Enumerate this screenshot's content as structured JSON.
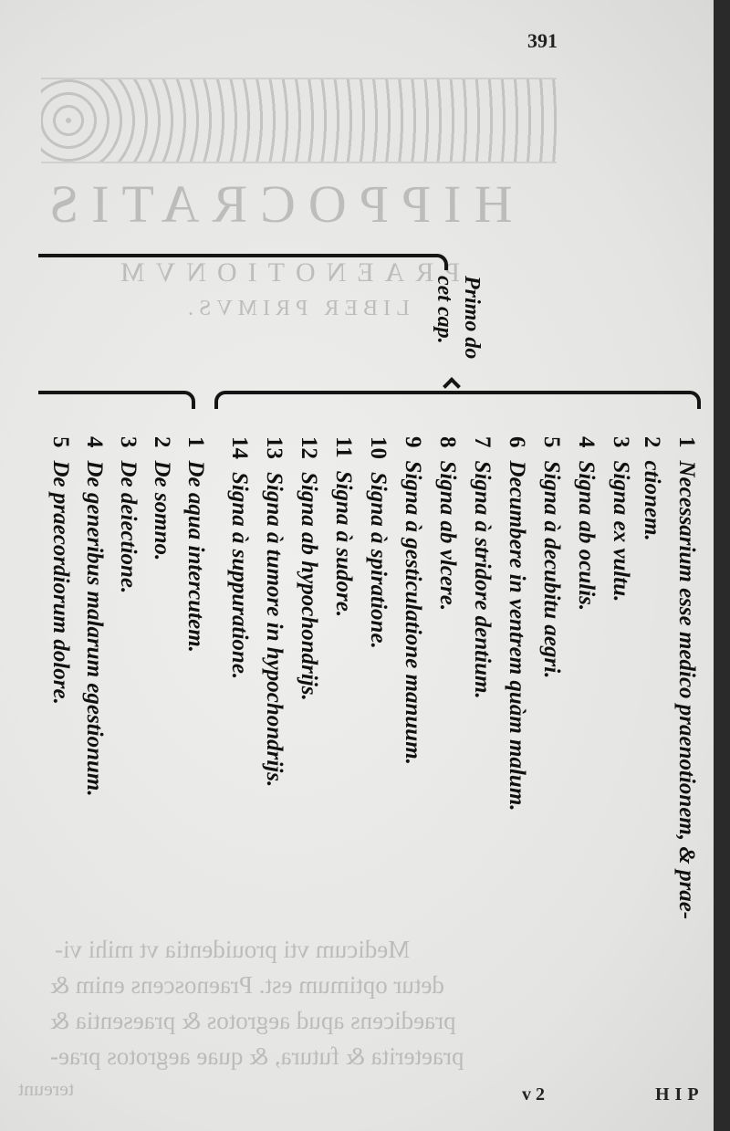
{
  "page_number": "391",
  "show_through": {
    "title": "HIPPOCRATIS",
    "subtitle": "PRAENOTIONVM",
    "book": "LIBER PRIMVS.",
    "paragraph": [
      "Medicum vti prouidentia vt mihi vi-",
      "detur optimum est. Praenoscens enim &",
      "praedicens apud aegrotos & praesentia &",
      "praeterita & futura, & quae aegrotos prae-",
      "tereunt"
    ]
  },
  "margin_note": [
    "Primo do",
    "cet cap."
  ],
  "chapters": [
    {
      "num": "1",
      "text": "Necessarium esse medico praenotionem, & prae-"
    },
    {
      "num": "2",
      "text": "ctionem."
    },
    {
      "num": "3",
      "text": "Signa ex vultu."
    },
    {
      "num": "4",
      "text": "Signa ab oculis."
    },
    {
      "num": "5",
      "text": "Signa à decubitu aegri."
    },
    {
      "num": "6",
      "text": "Decumbere in ventrem quàm malum."
    },
    {
      "num": "7",
      "text": "Signa à stridore dentium."
    },
    {
      "num": "8",
      "text": "Signa ab vlcere."
    },
    {
      "num": "9",
      "text": "Signa à gesticulatione manuum."
    },
    {
      "num": "10",
      "text": "Signa à spiratione."
    },
    {
      "num": "11",
      "text": "Signa à sudore."
    },
    {
      "num": "12",
      "text": "Signa ab hypochondrijs."
    },
    {
      "num": "13",
      "text": "Signa à tumore in hypochondrijs."
    },
    {
      "num": "14",
      "text": "Signa à suppuratione."
    }
  ],
  "second_group": [
    {
      "num": "1",
      "text": "De aqua intercutem."
    },
    {
      "num": "2",
      "text": "De somno."
    },
    {
      "num": "3",
      "text": "De deiectione."
    },
    {
      "num": "4",
      "text": "De generibus malarum egestionum."
    },
    {
      "num": "5",
      "text": "De praecordiorum dolore."
    }
  ],
  "signature_mark": "v 2",
  "catchword": "HIP"
}
